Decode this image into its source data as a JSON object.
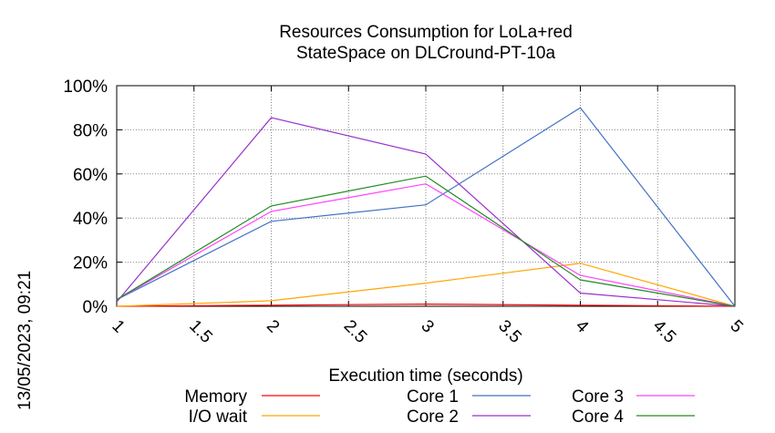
{
  "chart_data": {
    "type": "line",
    "title": [
      "Resources Consumption for LoLa+red",
      "StateSpace on DLCround-PT-10a"
    ],
    "xlabel": "Execution time (seconds)",
    "ylabel": "",
    "xlim": [
      1,
      5
    ],
    "ylim": [
      0,
      100
    ],
    "x_ticks": [
      1,
      1.5,
      2,
      2.5,
      3,
      3.5,
      4,
      4.5,
      5
    ],
    "y_ticks": [
      0,
      20,
      40,
      60,
      80,
      100
    ],
    "x_tick_labels": [
      "1",
      "1.5",
      "2",
      "2.5",
      "3",
      "3.5",
      "4",
      "4.5",
      "5"
    ],
    "y_tick_labels": [
      "0%",
      "20%",
      "40%",
      "60%",
      "80%",
      "100%"
    ],
    "grid": true,
    "legend_placement": "bottom",
    "timestamp": "13/05/2023, 09:21",
    "series": [
      {
        "name": "Memory",
        "color": "#ff0000",
        "x": [
          1,
          2,
          3,
          4,
          5
        ],
        "y": [
          0,
          0.5,
          1,
          0.5,
          0
        ]
      },
      {
        "name": "I/O wait",
        "color": "#ffa500",
        "x": [
          1,
          2,
          3,
          4,
          5
        ],
        "y": [
          0,
          2.5,
          10.5,
          19.5,
          0
        ]
      },
      {
        "name": "Core 1",
        "color": "#4472c4",
        "x": [
          1,
          2,
          3,
          4,
          5
        ],
        "y": [
          3,
          38.5,
          46,
          90,
          0
        ]
      },
      {
        "name": "Core 2",
        "color": "#9932cc",
        "x": [
          1,
          2,
          3,
          4,
          5
        ],
        "y": [
          2,
          85.5,
          69,
          6,
          0
        ]
      },
      {
        "name": "Core 3",
        "color": "#ff40ff",
        "x": [
          1,
          2,
          3,
          4,
          5
        ],
        "y": [
          3,
          43,
          55.5,
          14,
          0
        ]
      },
      {
        "name": "Core 4",
        "color": "#228b22",
        "x": [
          1,
          2,
          3,
          4,
          5
        ],
        "y": [
          3,
          45.5,
          59,
          12,
          0
        ]
      }
    ]
  }
}
